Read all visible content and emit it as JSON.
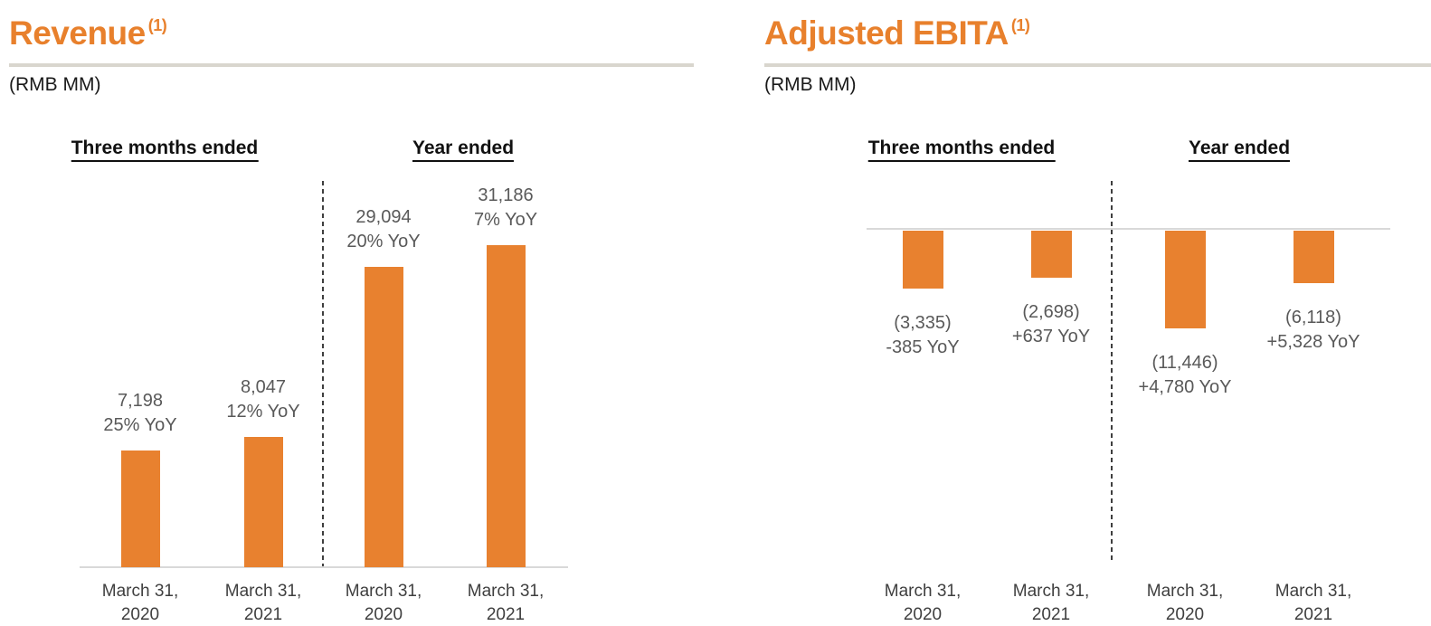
{
  "colors": {
    "accent_orange": "#E8812F",
    "title_orange": "#E8802C",
    "value_label_gray": "#595959",
    "axis_line_gray": "#D9D9D9",
    "divider_gray": "#D9D6CE",
    "dashed_line_gray": "#3F3F3F",
    "text_black": "#1A1A1A"
  },
  "chart_data": [
    {
      "type": "bar",
      "title": "Revenue",
      "title_superscript": "(1)",
      "unit_label": "(RMB MM)",
      "groups": [
        {
          "header": "Three months ended",
          "bars": [
            {
              "category": "March 31, 2020",
              "value": 7198,
              "value_label": "7,198",
              "yoy_label": "25% YoY"
            },
            {
              "category": "March 31, 2021",
              "value": 8047,
              "value_label": "8,047",
              "yoy_label": "12% YoY"
            }
          ]
        },
        {
          "header": "Year ended",
          "bars": [
            {
              "category": "March 31, 2020",
              "value": 29094,
              "value_label": "29,094",
              "yoy_label": "20% YoY"
            },
            {
              "category": "March 31, 2021",
              "value": 31186,
              "value_label": "31,186",
              "yoy_label": "7% YoY"
            }
          ]
        }
      ]
    },
    {
      "type": "bar",
      "title": "Adjusted EBITA",
      "title_superscript": "(1)",
      "unit_label": "(RMB MM)",
      "groups": [
        {
          "header": "Three months ended",
          "bars": [
            {
              "category": "March 31, 2020",
              "value": -3335,
              "value_label": "(3,335)",
              "yoy_label": "-385 YoY"
            },
            {
              "category": "March 31, 2021",
              "value": -2698,
              "value_label": "(2,698)",
              "yoy_label": "+637 YoY"
            }
          ]
        },
        {
          "header": "Year ended",
          "bars": [
            {
              "category": "March 31, 2020",
              "value": -11446,
              "value_label": "(11,446)",
              "yoy_label": "+4,780 YoY"
            },
            {
              "category": "March 31, 2021",
              "value": -6118,
              "value_label": "(6,118)",
              "yoy_label": "+5,328 YoY"
            }
          ]
        }
      ]
    }
  ]
}
